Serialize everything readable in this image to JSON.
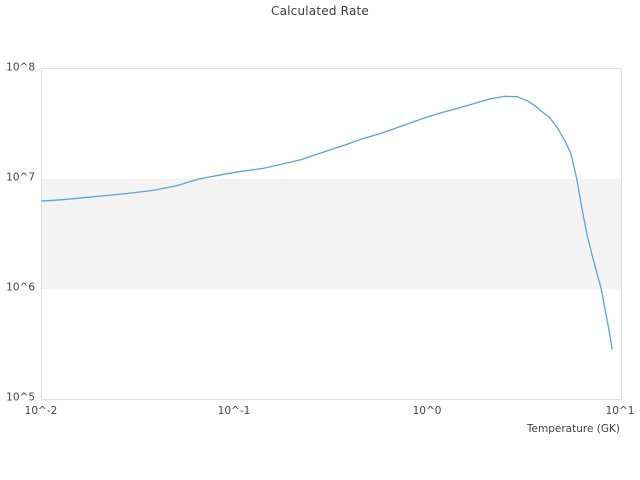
{
  "chart_data": {
    "type": "line",
    "title": "Calculated Rate",
    "xlabel": "Temperature (GK)",
    "ylabel": "",
    "x_scale": "log",
    "y_scale": "log",
    "xlim": [
      0.01,
      10
    ],
    "ylim": [
      100000.0,
      100000000.0
    ],
    "grid": false,
    "legend": "none",
    "x_ticks": [
      {
        "label": "10^-2",
        "value": 0.01
      },
      {
        "label": "10^-1",
        "value": 0.1
      },
      {
        "label": "10^0",
        "value": 1
      },
      {
        "label": "10^1",
        "value": 10
      }
    ],
    "y_ticks": [
      {
        "label": "10^8",
        "value": 100000000.0
      },
      {
        "label": "10^7",
        "value": 10000000.0
      },
      {
        "label": "10^6",
        "value": 1000000.0
      },
      {
        "label": "10^5",
        "value": 100000.0
      }
    ],
    "shaded_band": {
      "y_from": 1000000.0,
      "y_to": 10000000.0,
      "color": "#f3f3f4"
    },
    "line_color": "#5ba3dc",
    "series": [
      {
        "name": "calculated-rate",
        "points": [
          [
            0.01,
            6300000.0
          ],
          [
            0.013,
            6500000.0
          ],
          [
            0.017,
            6800000.0
          ],
          [
            0.022,
            7100000.0
          ],
          [
            0.028,
            7400000.0
          ],
          [
            0.038,
            7900000.0
          ],
          [
            0.05,
            8700000.0
          ],
          [
            0.065,
            10000000.0
          ],
          [
            0.082,
            10800000.0
          ],
          [
            0.1,
            11500000.0
          ],
          [
            0.14,
            12500000.0
          ],
          [
            0.18,
            13800000.0
          ],
          [
            0.22,
            15000000.0
          ],
          [
            0.3,
            18000000.0
          ],
          [
            0.36,
            20000000.0
          ],
          [
            0.45,
            23000000.0
          ],
          [
            0.57,
            26000000.0
          ],
          [
            0.72,
            30000000.0
          ],
          [
            0.92,
            35000000.0
          ],
          [
            1.17,
            40000000.0
          ],
          [
            1.5,
            45000000.0
          ],
          [
            1.8,
            49500000.0
          ],
          [
            2.1,
            53500000.0
          ],
          [
            2.5,
            56500000.0
          ],
          [
            2.9,
            56000000.0
          ],
          [
            3.3,
            51000000.0
          ],
          [
            3.6,
            46000000.0
          ],
          [
            3.85,
            41500000.0
          ],
          [
            4.25,
            36500000.0
          ],
          [
            4.7,
            29000000.0
          ],
          [
            5.1,
            22500000.0
          ],
          [
            5.5,
            17000000.0
          ],
          [
            5.9,
            10000000.0
          ],
          [
            6.3,
            5200000.0
          ],
          [
            6.7,
            3000000.0
          ],
          [
            7.1,
            2000000.0
          ],
          [
            7.5,
            1400000.0
          ],
          [
            7.9,
            1000000.0
          ],
          [
            8.3,
            630000.0
          ],
          [
            8.65,
            430000.0
          ],
          [
            9.0,
            285000.0
          ]
        ]
      }
    ]
  }
}
